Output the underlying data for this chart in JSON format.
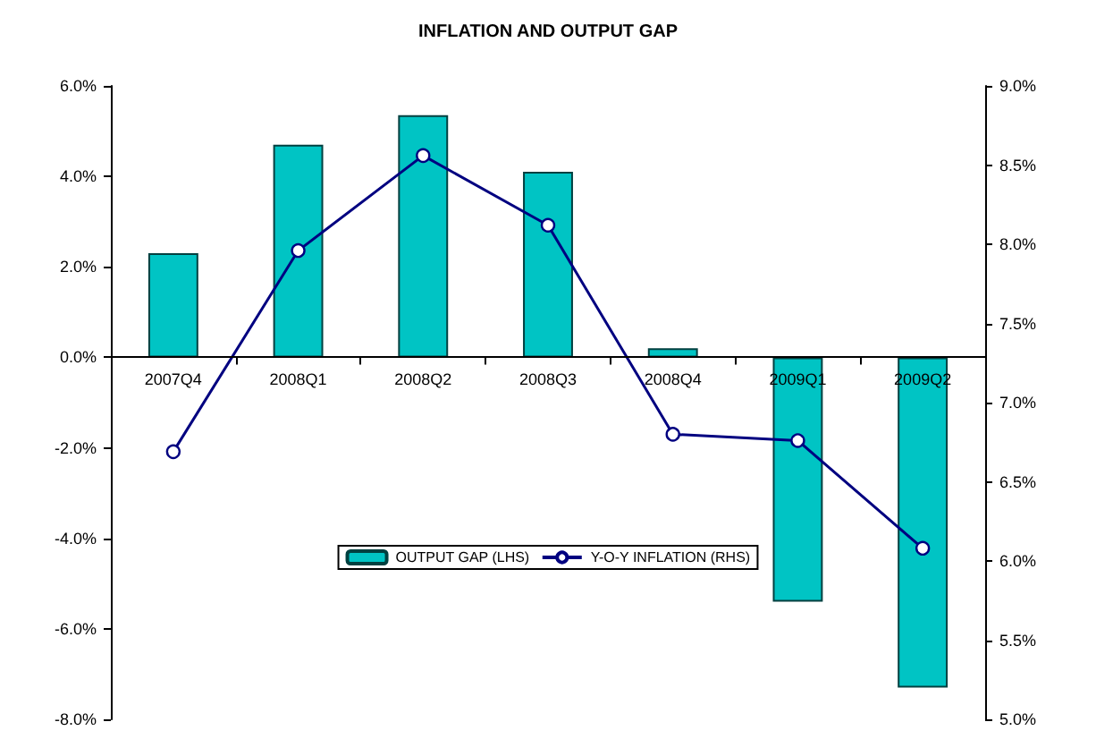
{
  "chart_data": {
    "type": "bar",
    "title": "INFLATION AND OUTPUT GAP",
    "categories": [
      "2007Q4",
      "2008Q1",
      "2008Q2",
      "2008Q3",
      "2008Q4",
      "2009Q1",
      "2009Q2"
    ],
    "series": [
      {
        "name": "OUTPUT GAP (LHS)",
        "type": "bar",
        "color": "#00c4c4",
        "values": [
          2.3,
          4.7,
          5.35,
          4.1,
          0.2,
          -5.4,
          -7.3
        ]
      },
      {
        "name": "Y-O-Y INFLATION (RHS)",
        "type": "line",
        "axis": "y2",
        "color": "#000080",
        "marker": "circle",
        "values": [
          6.69,
          7.96,
          8.56,
          8.12,
          6.8,
          6.76,
          6.08
        ]
      }
    ],
    "ylim": [
      -8,
      6
    ],
    "yticks": [
      {
        "value": -8,
        "label": "-8.0%"
      },
      {
        "value": -6,
        "label": "-6.0%"
      },
      {
        "value": -4,
        "label": "-4.0%"
      },
      {
        "value": -2,
        "label": "-2.0%"
      },
      {
        "value": 0,
        "label": "0.0%"
      },
      {
        "value": 2,
        "label": "2.0%"
      },
      {
        "value": 4,
        "label": "4.0%"
      },
      {
        "value": 6,
        "label": "6.0%"
      }
    ],
    "y2lim": [
      5,
      9
    ],
    "y2ticks": [
      {
        "value": 5,
        "label": "5.0%"
      },
      {
        "value": 5.5,
        "label": "5.5%"
      },
      {
        "value": 6,
        "label": "6.0%"
      },
      {
        "value": 6.5,
        "label": "6.5%"
      },
      {
        "value": 7,
        "label": "7.0%"
      },
      {
        "value": 7.5,
        "label": "7.5%"
      },
      {
        "value": 8,
        "label": "8.0%"
      },
      {
        "value": 8.5,
        "label": "8.5%"
      },
      {
        "value": 9,
        "label": "9.0%"
      }
    ],
    "grid": false,
    "legend": "bottom"
  }
}
